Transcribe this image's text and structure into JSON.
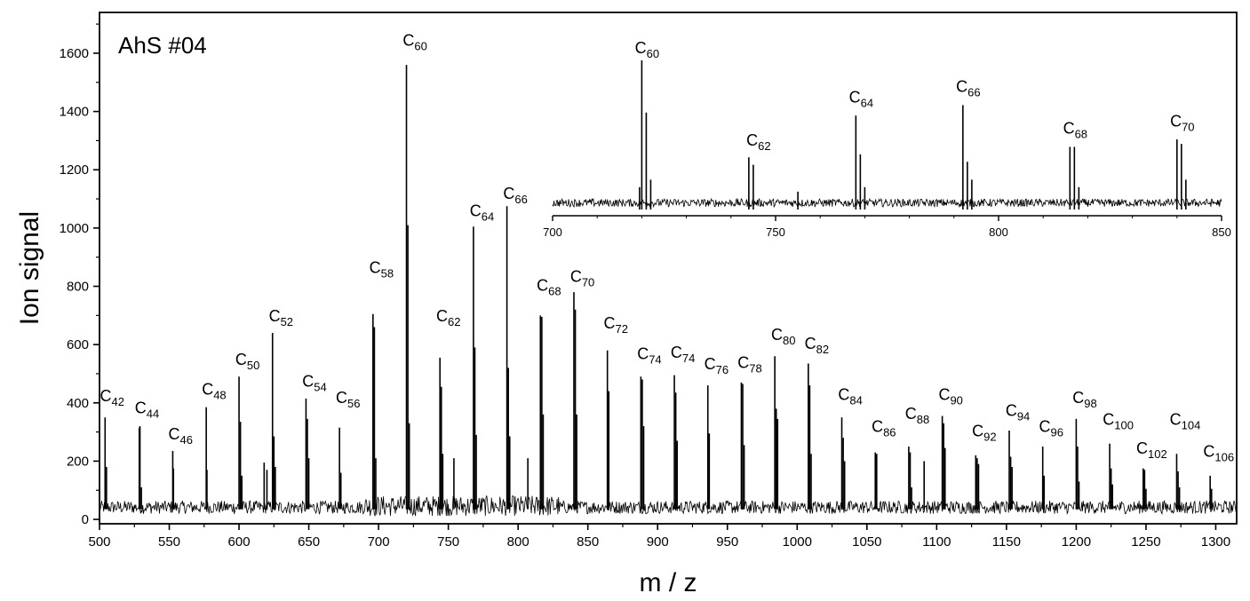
{
  "chart_data": {
    "type": "line",
    "title": "AhS #04",
    "xlabel": "m / z",
    "ylabel": "Ion signal",
    "xlim": [
      500,
      1315
    ],
    "ylim": [
      -15,
      1740
    ],
    "xticks": [
      500,
      550,
      600,
      650,
      700,
      750,
      800,
      850,
      900,
      950,
      1000,
      1050,
      1100,
      1150,
      1200,
      1250,
      1300
    ],
    "yticks": [
      0,
      200,
      400,
      600,
      800,
      1000,
      1200,
      1400,
      1600
    ],
    "grid": false,
    "series": [
      {
        "x": [
          504,
          505,
          528.5,
          529,
          530,
          552.5,
          553,
          576.5,
          577,
          600,
          601,
          602,
          618,
          620,
          624,
          625,
          626,
          648,
          649,
          650,
          672,
          673,
          696,
          697,
          698,
          720,
          721,
          722,
          744,
          745,
          746,
          754,
          768,
          769,
          770,
          792,
          793,
          794,
          807,
          816,
          817,
          818,
          840,
          841,
          842,
          864,
          865,
          888,
          889,
          890,
          912,
          913,
          914,
          936,
          937,
          960,
          961,
          962,
          984,
          985,
          986,
          1008,
          1009,
          1010,
          1032,
          1033,
          1034,
          1056,
          1057,
          1080,
          1081,
          1082,
          1091,
          1104,
          1105,
          1106,
          1128,
          1129,
          1130,
          1152,
          1153,
          1154,
          1176,
          1177,
          1200,
          1201,
          1202,
          1224,
          1225,
          1226,
          1248,
          1249,
          1250,
          1272,
          1273,
          1274,
          1296,
          1297
        ],
        "y": [
          350,
          180,
          315,
          320,
          110,
          235,
          175,
          385,
          170,
          490,
          335,
          150,
          195,
          170,
          640,
          285,
          180,
          415,
          345,
          210,
          315,
          160,
          705,
          660,
          210,
          1560,
          1010,
          330,
          555,
          455,
          225,
          210,
          1005,
          590,
          290,
          1075,
          520,
          285,
          210,
          700,
          695,
          360,
          780,
          720,
          360,
          580,
          440,
          490,
          480,
          320,
          495,
          435,
          270,
          460,
          295,
          470,
          465,
          255,
          560,
          380,
          345,
          535,
          460,
          225,
          350,
          280,
          200,
          230,
          225,
          250,
          230,
          110,
          200,
          355,
          330,
          245,
          220,
          210,
          190,
          305,
          215,
          180,
          250,
          150,
          345,
          250,
          130,
          260,
          175,
          120,
          175,
          170,
          105,
          225,
          165,
          110,
          150,
          105
        ],
        "baseline": 35,
        "noise_amplitude": 45
      }
    ],
    "peak_labels": [
      {
        "base": "C",
        "sub": "42",
        "x": 504,
        "y": 405
      },
      {
        "base": "C",
        "sub": "44",
        "x": 529,
        "y": 365
      },
      {
        "base": "C",
        "sub": "46",
        "x": 553,
        "y": 275
      },
      {
        "base": "C",
        "sub": "48",
        "x": 577,
        "y": 428
      },
      {
        "base": "C",
        "sub": "50",
        "x": 601,
        "y": 530
      },
      {
        "base": "C",
        "sub": "52",
        "x": 625,
        "y": 680
      },
      {
        "base": "C",
        "sub": "54",
        "x": 649,
        "y": 455
      },
      {
        "base": "C",
        "sub": "56",
        "x": 673,
        "y": 400
      },
      {
        "base": "C",
        "sub": "58",
        "x": 697,
        "y": 845
      },
      {
        "base": "C",
        "sub": "60",
        "x": 721,
        "y": 1625
      },
      {
        "base": "C",
        "sub": "62",
        "x": 745,
        "y": 680
      },
      {
        "base": "C",
        "sub": "64",
        "x": 769,
        "y": 1040
      },
      {
        "base": "C",
        "sub": "66",
        "x": 793,
        "y": 1100
      },
      {
        "base": "C",
        "sub": "68",
        "x": 817,
        "y": 785
      },
      {
        "base": "C",
        "sub": "70",
        "x": 841,
        "y": 815
      },
      {
        "base": "C",
        "sub": "72",
        "x": 865,
        "y": 655
      },
      {
        "base": "C",
        "sub": "74",
        "x": 889,
        "y": 550
      },
      {
        "base": "C",
        "sub": "74",
        "x": 913,
        "y": 555
      },
      {
        "base": "C",
        "sub": "76",
        "x": 937,
        "y": 515
      },
      {
        "base": "C",
        "sub": "78",
        "x": 961,
        "y": 520
      },
      {
        "base": "C",
        "sub": "80",
        "x": 985,
        "y": 615
      },
      {
        "base": "C",
        "sub": "82",
        "x": 1009,
        "y": 585
      },
      {
        "base": "C",
        "sub": "84",
        "x": 1033,
        "y": 410
      },
      {
        "base": "C",
        "sub": "86",
        "x": 1057,
        "y": 300
      },
      {
        "base": "C",
        "sub": "88",
        "x": 1081,
        "y": 345
      },
      {
        "base": "C",
        "sub": "90",
        "x": 1105,
        "y": 410
      },
      {
        "base": "C",
        "sub": "92",
        "x": 1129,
        "y": 285
      },
      {
        "base": "C",
        "sub": "94",
        "x": 1153,
        "y": 355
      },
      {
        "base": "C",
        "sub": "96",
        "x": 1177,
        "y": 300
      },
      {
        "base": "C",
        "sub": "98",
        "x": 1201,
        "y": 400
      },
      {
        "base": "C",
        "sub": "100",
        "x": 1225,
        "y": 325
      },
      {
        "base": "C",
        "sub": "102",
        "x": 1249,
        "y": 225
      },
      {
        "base": "C",
        "sub": "104",
        "x": 1273,
        "y": 325
      },
      {
        "base": "C",
        "sub": "106",
        "x": 1297,
        "y": 215
      }
    ],
    "inset": {
      "type": "line",
      "xlim": [
        700,
        850
      ],
      "xticks": [
        700,
        750,
        800,
        850
      ],
      "peaks": {
        "x": [
          719.5,
          720,
          721,
          722,
          744,
          745,
          755,
          768,
          769,
          770,
          792,
          793,
          794,
          816,
          817,
          818,
          840,
          841,
          842
        ],
        "y": [
          0.15,
          1.0,
          0.65,
          0.2,
          0.35,
          0.3,
          0.12,
          0.63,
          0.37,
          0.15,
          0.7,
          0.32,
          0.2,
          0.42,
          0.42,
          0.15,
          0.47,
          0.44,
          0.2
        ]
      },
      "peak_labels": [
        {
          "base": "C",
          "sub": "60",
          "x": 720,
          "level": 1.0
        },
        {
          "base": "C",
          "sub": "62",
          "x": 745,
          "level": 0.38
        },
        {
          "base": "C",
          "sub": "64",
          "x": 768,
          "level": 0.67
        },
        {
          "base": "C",
          "sub": "66",
          "x": 792,
          "level": 0.74
        },
        {
          "base": "C",
          "sub": "68",
          "x": 816,
          "level": 0.46
        },
        {
          "base": "C",
          "sub": "70",
          "x": 840,
          "level": 0.51
        }
      ]
    }
  }
}
